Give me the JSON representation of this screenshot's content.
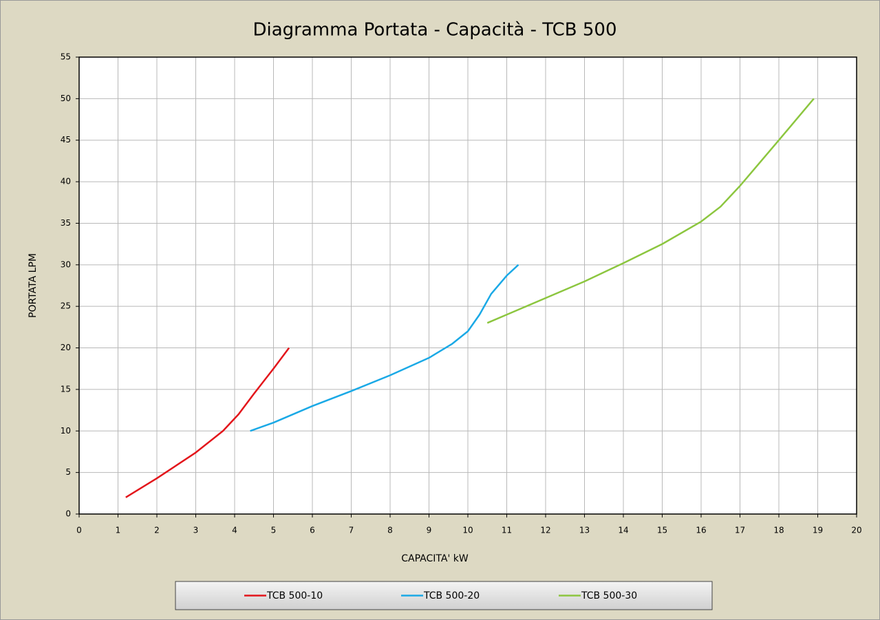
{
  "chart_data": {
    "type": "line",
    "title": "Diagramma Portata - Capacità - TCB 500",
    "x_label": "CAPACITA' kW",
    "y_label": "PORTATA LPM",
    "xlim": [
      0,
      20
    ],
    "ylim": [
      0,
      55
    ],
    "xticks": [
      0,
      1,
      2,
      3,
      4,
      5,
      6,
      7,
      8,
      9,
      10,
      11,
      12,
      13,
      14,
      15,
      16,
      17,
      18,
      19,
      20
    ],
    "yticks": [
      0,
      5,
      10,
      15,
      20,
      25,
      30,
      35,
      40,
      45,
      50,
      55
    ],
    "grid": true,
    "legend": "bottom",
    "series": [
      {
        "name": "TCB 500-10",
        "color": "#e3151b",
        "x": [
          1.2,
          2,
          3,
          3.7,
          4.1,
          4.5,
          5,
          5.4
        ],
        "values": [
          2,
          4.3,
          7.4,
          10,
          12,
          14.5,
          17.5,
          20
        ]
      },
      {
        "name": "TCB 500-20",
        "color": "#1aa9e6",
        "x": [
          4.4,
          5,
          6,
          7,
          8,
          9,
          9.6,
          10,
          10.3,
          10.6,
          11,
          11.3
        ],
        "values": [
          10,
          11,
          13,
          14.8,
          16.7,
          18.8,
          20.5,
          22,
          24,
          26.5,
          28.7,
          30
        ]
      },
      {
        "name": "TCB 500-30",
        "color": "#8cc63f",
        "x": [
          10.5,
          11,
          12,
          13,
          14,
          15,
          16,
          16.5,
          17,
          18,
          18.9
        ],
        "values": [
          23,
          24,
          26,
          28,
          30.2,
          32.5,
          35.2,
          37,
          39.5,
          45,
          50
        ]
      }
    ]
  }
}
